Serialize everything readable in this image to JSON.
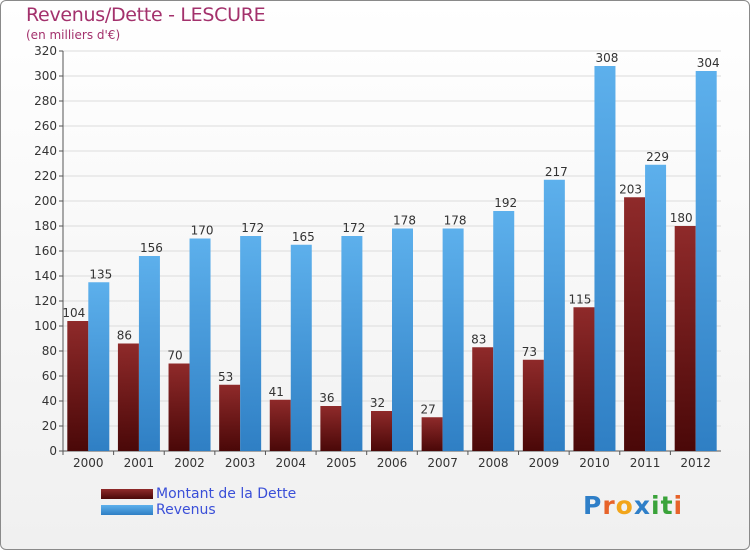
{
  "header": {
    "title": "Revenus/Dette - LESCURE",
    "subtitle": "(en milliers d'€)"
  },
  "logo": {
    "text": "Proxiti",
    "colors": [
      "#2f7fc8",
      "#e7632a",
      "#f2a51a",
      "#2f7fc8",
      "#3aa33a",
      "#3aa33a",
      "#e7632a"
    ]
  },
  "colors": {
    "dette": "#7a1818",
    "revenus": "#52a6e4",
    "title": "#a3316c",
    "legend_text": "#3a4fd8"
  },
  "chart_data": {
    "type": "bar",
    "title": "Revenus/Dette - LESCURE",
    "subtitle": "(en milliers d'€)",
    "categories": [
      "2000",
      "2001",
      "2002",
      "2003",
      "2004",
      "2005",
      "2006",
      "2007",
      "2008",
      "2009",
      "2010",
      "2011",
      "2012"
    ],
    "series": [
      {
        "name": "Montant de la Dette",
        "values": [
          104,
          86,
          70,
          53,
          41,
          36,
          32,
          27,
          83,
          73,
          115,
          203,
          180
        ]
      },
      {
        "name": "Revenus",
        "values": [
          135,
          156,
          170,
          172,
          165,
          172,
          178,
          178,
          192,
          217,
          308,
          229,
          304
        ]
      }
    ],
    "ylim": [
      0,
      320
    ],
    "yticks": [
      0,
      20,
      40,
      60,
      80,
      100,
      120,
      140,
      160,
      180,
      200,
      220,
      240,
      260,
      280,
      300,
      320
    ],
    "grid": true,
    "legend": "bottom-left"
  }
}
